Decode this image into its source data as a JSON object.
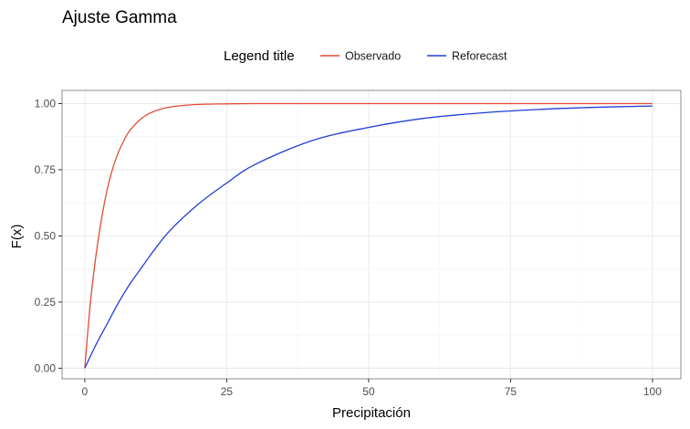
{
  "chart_data": {
    "type": "line",
    "title": "Ajuste Gamma",
    "xlabel": "Precipitación",
    "ylabel": "F(x)",
    "xlim": [
      -4,
      105
    ],
    "ylim": [
      -0.04,
      1.05
    ],
    "x_ticks": [
      0,
      25,
      50,
      75,
      100
    ],
    "x_tick_labels": [
      "0",
      "25",
      "50",
      "75",
      "100"
    ],
    "y_ticks": [
      0,
      0.25,
      0.5,
      0.75,
      1.0
    ],
    "y_tick_labels": [
      "0.00",
      "0.25",
      "0.50",
      "0.75",
      "1.00"
    ],
    "grid": true,
    "legend": {
      "title": "Legend title",
      "position": "top"
    },
    "series": [
      {
        "name": "Observado",
        "color": "#e34a33",
        "x": [
          0,
          1,
          2,
          3,
          4,
          5,
          6,
          7,
          8,
          10,
          12,
          15,
          20,
          25,
          30,
          40,
          50,
          60,
          70,
          80,
          90,
          100
        ],
        "y": [
          0,
          0.25,
          0.43,
          0.57,
          0.68,
          0.76,
          0.82,
          0.865,
          0.9,
          0.944,
          0.969,
          0.987,
          0.997,
          0.999,
          1.0,
          1.0,
          1.0,
          1.0,
          1.0,
          1.0,
          1.0,
          1.0
        ]
      },
      {
        "name": "Reforecast",
        "color": "#1f3ed6",
        "x": [
          0,
          2,
          4,
          6,
          8,
          10,
          12,
          15,
          20,
          25,
          30,
          40,
          50,
          60,
          70,
          80,
          90,
          100
        ],
        "y": [
          0,
          0.09,
          0.17,
          0.25,
          0.32,
          0.38,
          0.44,
          0.52,
          0.62,
          0.7,
          0.77,
          0.86,
          0.91,
          0.945,
          0.965,
          0.978,
          0.986,
          0.991
        ]
      }
    ]
  }
}
